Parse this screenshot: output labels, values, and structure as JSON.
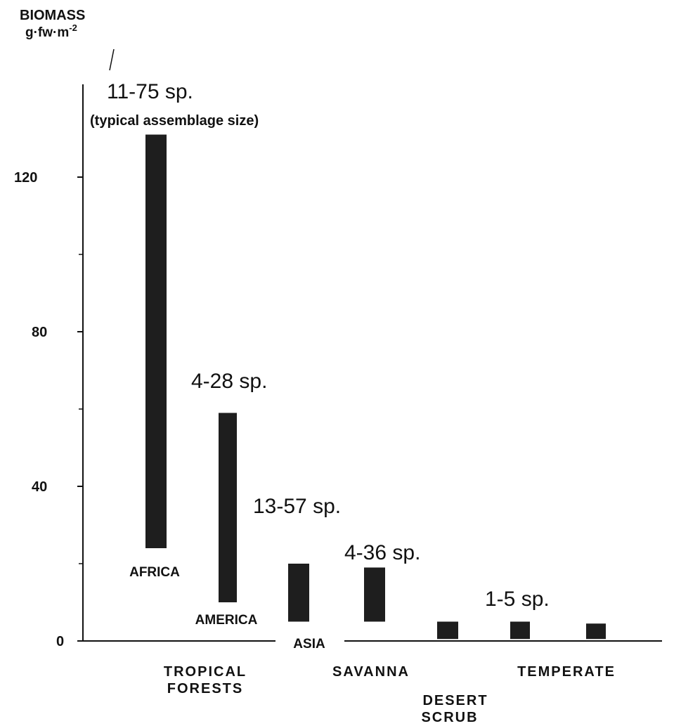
{
  "chart_data": {
    "type": "bar",
    "subtype": "floating-range",
    "ylabel_line1": "BIOMASS",
    "ylabel_line2": "g·fw·m",
    "ylabel_exp": "-2",
    "ylim": [
      0,
      140
    ],
    "yticks": [
      0,
      40,
      80,
      120
    ],
    "minor_ticks": [
      20,
      60,
      100
    ],
    "grid": false,
    "bar_color": "#1e1e1e",
    "bars": [
      {
        "id": "africa",
        "label": "AFRICA",
        "low": 24,
        "high": 131,
        "species": "11-75 sp.",
        "note": "(typical assemblage size)"
      },
      {
        "id": "america",
        "label": "AMERICA",
        "low": 10,
        "high": 59,
        "species": "4-28 sp."
      },
      {
        "id": "asia",
        "label": "ASIA",
        "low": 5,
        "high": 20,
        "species": "13-57 sp."
      },
      {
        "id": "savanna",
        "label": "",
        "low": 5,
        "high": 19,
        "species": "4-36 sp."
      },
      {
        "id": "desert",
        "label": "",
        "low": 0.5,
        "high": 5,
        "species": ""
      },
      {
        "id": "temperate1",
        "label": "",
        "low": 0.5,
        "high": 5,
        "species": "1-5 sp."
      },
      {
        "id": "temperate2",
        "label": "",
        "low": 0.5,
        "high": 4.5,
        "species": ""
      }
    ],
    "groups": [
      {
        "id": "tropical",
        "line1": "TROPICAL",
        "line2": "FORESTS"
      },
      {
        "id": "savanna",
        "line1": "SAVANNA",
        "line2": ""
      },
      {
        "id": "desert",
        "line1": "DESERT",
        "line2": "SCRUB"
      },
      {
        "id": "temperate",
        "line1": "TEMPERATE",
        "line2": ""
      }
    ]
  }
}
